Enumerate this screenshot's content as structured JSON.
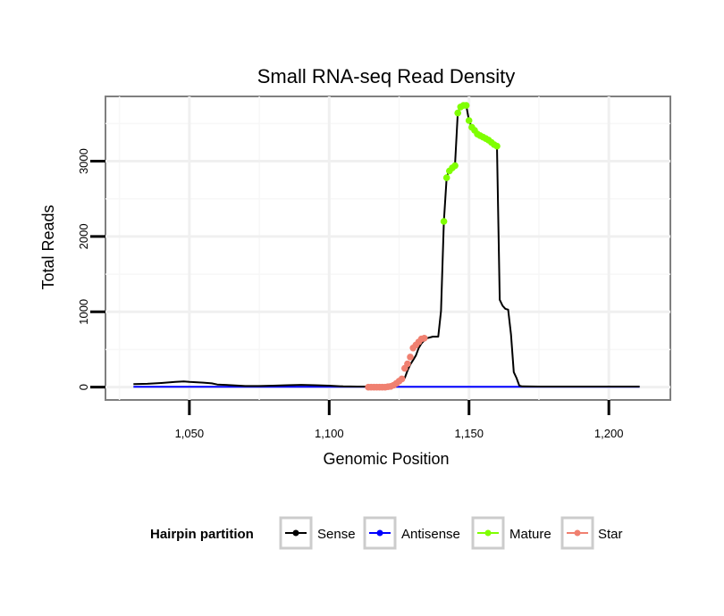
{
  "chart_data": {
    "type": "line",
    "title": "Small RNA-seq Read Density",
    "xlabel": "Genomic Position",
    "ylabel": "Total Reads",
    "xlim": [
      1020,
      1222
    ],
    "ylim": [
      -170,
      3860
    ],
    "x_ticks": [
      1050,
      1100,
      1150,
      1200
    ],
    "x_tick_labels": [
      "1,050",
      "1,100",
      "1,150",
      "1,200"
    ],
    "y_ticks": [
      0,
      1000,
      2000,
      3000
    ],
    "y_tick_labels": [
      "0",
      "1000",
      "2000",
      "3000"
    ],
    "grid": true,
    "legend": {
      "title": "Hairpin partition",
      "position": "bottom",
      "entries": [
        "Sense",
        "Antisense",
        "Mature",
        "Star"
      ]
    },
    "colors": {
      "Sense": "#000000",
      "Antisense": "#0000ff",
      "Mature": "#7fff00",
      "Star": "#f08070"
    },
    "series": [
      {
        "name": "Sense",
        "x": [
          1030,
          1035,
          1040,
          1045,
          1048,
          1050,
          1055,
          1058,
          1060,
          1065,
          1070,
          1075,
          1080,
          1085,
          1090,
          1095,
          1100,
          1105,
          1110,
          1114,
          1116,
          1118,
          1120,
          1122,
          1124,
          1126,
          1127,
          1128,
          1129,
          1130,
          1131,
          1132,
          1133,
          1134,
          1135,
          1136,
          1137,
          1138,
          1139,
          1140,
          1141,
          1142,
          1143,
          1144,
          1145,
          1146,
          1147,
          1148,
          1149,
          1150,
          1151,
          1152,
          1153,
          1154,
          1155,
          1156,
          1157,
          1158,
          1159,
          1160,
          1161,
          1162,
          1163,
          1164,
          1165,
          1166,
          1167,
          1168,
          1169,
          1175,
          1180,
          1190,
          1200,
          1211
        ],
        "values": [
          40,
          45,
          55,
          70,
          75,
          70,
          60,
          50,
          35,
          25,
          15,
          15,
          20,
          25,
          30,
          25,
          20,
          10,
          8,
          8,
          10,
          12,
          15,
          25,
          40,
          80,
          120,
          220,
          300,
          360,
          420,
          520,
          580,
          620,
          650,
          660,
          670,
          670,
          670,
          1010,
          2200,
          2780,
          2900,
          2920,
          2960,
          3650,
          3720,
          3740,
          3740,
          3540,
          3450,
          3410,
          3360,
          3340,
          3320,
          3300,
          3280,
          3250,
          3220,
          3200,
          1160,
          1080,
          1040,
          1030,
          700,
          200,
          120,
          20,
          10,
          8,
          8,
          8,
          8,
          8
        ]
      },
      {
        "name": "Antisense",
        "x": [
          1030,
          1211
        ],
        "values": [
          5,
          5
        ]
      },
      {
        "name": "Mature",
        "x": [
          1141,
          1142,
          1143,
          1144,
          1145,
          1146,
          1147,
          1148,
          1149,
          1150,
          1151,
          1152,
          1153,
          1154,
          1155,
          1156,
          1157,
          1158,
          1159,
          1160
        ],
        "values": [
          2200,
          2780,
          2870,
          2910,
          2940,
          3640,
          3720,
          3740,
          3740,
          3540,
          3450,
          3410,
          3360,
          3340,
          3320,
          3300,
          3280,
          3250,
          3220,
          3200
        ]
      },
      {
        "name": "Star",
        "x": [
          1114,
          1115,
          1116,
          1117,
          1118,
          1119,
          1120,
          1121,
          1122,
          1123,
          1124,
          1125,
          1126,
          1127,
          1128,
          1129,
          1130,
          1131,
          1132,
          1133,
          1134
        ],
        "values": [
          0,
          0,
          0,
          0,
          0,
          0,
          0,
          5,
          10,
          25,
          50,
          80,
          110,
          250,
          310,
          400,
          520,
          560,
          600,
          640,
          650
        ]
      }
    ]
  }
}
